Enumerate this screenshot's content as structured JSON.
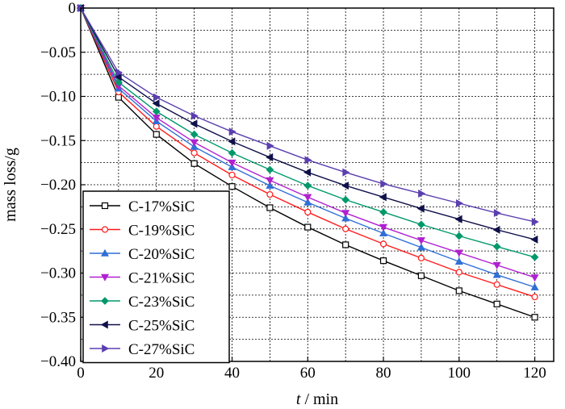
{
  "chart_data": {
    "type": "line",
    "title": "",
    "xlabel_italic": "t",
    "xlabel_rest": " / min",
    "ylabel": "mass loss/g",
    "xlim": [
      0,
      125
    ],
    "ylim": [
      -0.4,
      0
    ],
    "x_ticks": [
      0,
      20,
      40,
      60,
      80,
      100,
      120
    ],
    "x_tick_labels": [
      "0",
      "20",
      "40",
      "60",
      "80",
      "100",
      "120"
    ],
    "y_ticks": [
      0,
      -0.05,
      -0.1,
      -0.15,
      -0.2,
      -0.25,
      -0.3,
      -0.35,
      -0.4
    ],
    "y_tick_labels": [
      "0",
      "−0.05",
      "−0.10",
      "−0.15",
      "−0.20",
      "−0.25",
      "−0.30",
      "−0.35",
      "−0.40"
    ],
    "grid": true,
    "grid_x_step": 10,
    "grid_y_step": 0.025,
    "legend_position": "lower-left",
    "x": [
      0,
      10,
      20,
      30,
      40,
      50,
      60,
      70,
      80,
      90,
      100,
      110,
      120
    ],
    "series": [
      {
        "name": "C-17%SiC",
        "color": "#000000",
        "marker": "square",
        "values": [
          0,
          -0.101,
          -0.143,
          -0.176,
          -0.202,
          -0.226,
          -0.248,
          -0.268,
          -0.286,
          -0.303,
          -0.32,
          -0.335,
          -0.35
        ]
      },
      {
        "name": "C-19%SiC",
        "color": "#ff1a1a",
        "marker": "circle",
        "values": [
          0,
          -0.095,
          -0.134,
          -0.164,
          -0.189,
          -0.211,
          -0.231,
          -0.25,
          -0.267,
          -0.283,
          -0.299,
          -0.313,
          -0.327
        ]
      },
      {
        "name": "C-20%SiC",
        "color": "#2f6fd6",
        "marker": "triangle-up",
        "values": [
          0,
          -0.091,
          -0.128,
          -0.157,
          -0.18,
          -0.201,
          -0.22,
          -0.238,
          -0.255,
          -0.271,
          -0.287,
          -0.302,
          -0.316
        ]
      },
      {
        "name": "C-21%SiC",
        "color": "#b020d0",
        "marker": "triangle-down",
        "values": [
          0,
          -0.088,
          -0.124,
          -0.152,
          -0.175,
          -0.195,
          -0.214,
          -0.232,
          -0.248,
          -0.263,
          -0.277,
          -0.291,
          -0.305
        ]
      },
      {
        "name": "C-23%SiC",
        "color": "#00996b",
        "marker": "diamond",
        "values": [
          0,
          -0.084,
          -0.117,
          -0.143,
          -0.164,
          -0.183,
          -0.201,
          -0.217,
          -0.231,
          -0.245,
          -0.258,
          -0.27,
          -0.282
        ]
      },
      {
        "name": "C-25%SiC",
        "color": "#10104a",
        "marker": "triangle-left",
        "values": [
          0,
          -0.078,
          -0.108,
          -0.131,
          -0.151,
          -0.169,
          -0.186,
          -0.201,
          -0.214,
          -0.227,
          -0.239,
          -0.251,
          -0.262
        ]
      },
      {
        "name": "C-27%SiC",
        "color": "#5b3fb0",
        "marker": "triangle-right",
        "values": [
          0,
          -0.073,
          -0.101,
          -0.122,
          -0.14,
          -0.156,
          -0.172,
          -0.186,
          -0.199,
          -0.21,
          -0.221,
          -0.232,
          -0.242
        ]
      }
    ]
  }
}
